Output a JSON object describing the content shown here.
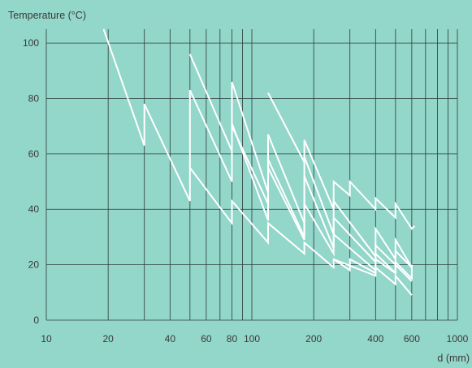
{
  "chart_data": {
    "type": "line",
    "ylabel": "Temperature (°C)",
    "xlabel": "d (mm)",
    "x_scale": "log",
    "xlim": [
      10,
      1000
    ],
    "ylim": [
      0,
      105
    ],
    "x_ticks": [
      10,
      20,
      40,
      60,
      80,
      100,
      200,
      400,
      600,
      1000
    ],
    "y_ticks": [
      0,
      20,
      40,
      60,
      80,
      100
    ],
    "grid": true,
    "line_color": "#ffffff",
    "background": "#93d6ca",
    "series": [
      {
        "points": [
          [
            19,
            105
          ],
          [
            30,
            63
          ],
          [
            30,
            78
          ],
          [
            50,
            43
          ],
          [
            50,
            83
          ],
          [
            80,
            50
          ],
          [
            80,
            71
          ],
          [
            120,
            36
          ],
          [
            120,
            58
          ],
          [
            180,
            30
          ],
          [
            180,
            52
          ],
          [
            250,
            26
          ],
          [
            250,
            37
          ],
          [
            400,
            21
          ],
          [
            400,
            27
          ],
          [
            500,
            20
          ],
          [
            500,
            25
          ],
          [
            600,
            19
          ]
        ]
      },
      {
        "points": [
          [
            50,
            96
          ],
          [
            80,
            61
          ],
          [
            80,
            86
          ],
          [
            120,
            46
          ],
          [
            120,
            67
          ],
          [
            180,
            35
          ],
          [
            180,
            59
          ],
          [
            250,
            31
          ],
          [
            250,
            43
          ],
          [
            400,
            23
          ],
          [
            400,
            33
          ],
          [
            500,
            22
          ],
          [
            500,
            29
          ],
          [
            600,
            19
          ]
        ]
      },
      {
        "points": [
          [
            50,
            55
          ],
          [
            80,
            35
          ],
          [
            80,
            43
          ],
          [
            120,
            28
          ],
          [
            120,
            35
          ],
          [
            180,
            24
          ],
          [
            180,
            28
          ],
          [
            250,
            19
          ],
          [
            250,
            22
          ],
          [
            400,
            16
          ],
          [
            400,
            19
          ],
          [
            500,
            13
          ],
          [
            500,
            16
          ],
          [
            600,
            9
          ]
        ]
      },
      {
        "points": [
          [
            80,
            70
          ],
          [
            120,
            42
          ],
          [
            120,
            55
          ],
          [
            180,
            29
          ],
          [
            180,
            42
          ],
          [
            250,
            24
          ],
          [
            250,
            31
          ],
          [
            400,
            18
          ],
          [
            400,
            24
          ],
          [
            500,
            17
          ],
          [
            500,
            20
          ],
          [
            600,
            14
          ]
        ]
      },
      {
        "points": [
          [
            120,
            82
          ],
          [
            180,
            57
          ],
          [
            180,
            65
          ],
          [
            250,
            40
          ],
          [
            250,
            50
          ],
          [
            300,
            45
          ],
          [
            300,
            50
          ],
          [
            400,
            40
          ],
          [
            400,
            44
          ],
          [
            500,
            37
          ],
          [
            500,
            42
          ],
          [
            600,
            33
          ],
          [
            620,
            34
          ]
        ]
      },
      {
        "points": [
          [
            250,
            22
          ],
          [
            300,
            18
          ],
          [
            300,
            22
          ],
          [
            400,
            17
          ],
          [
            400,
            22
          ],
          [
            500,
            17
          ],
          [
            500,
            21
          ],
          [
            600,
            15
          ],
          [
            600,
            20
          ]
        ]
      }
    ]
  }
}
